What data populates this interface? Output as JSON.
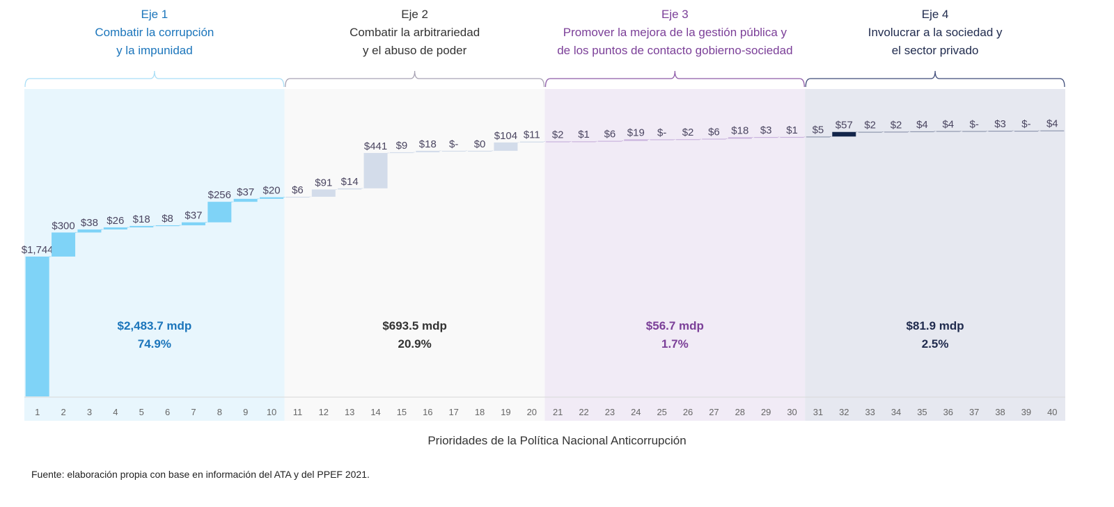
{
  "chart_data": {
    "type": "waterfall",
    "xlabel": "Prioridades de la Política Nacional Anticorrupción",
    "source": "Fuente: elaboración propia con base en información del ATA y del PPEF 2021.",
    "categories": [
      "1",
      "2",
      "3",
      "4",
      "5",
      "6",
      "7",
      "8",
      "9",
      "10",
      "11",
      "12",
      "13",
      "14",
      "15",
      "16",
      "17",
      "18",
      "19",
      "20",
      "21",
      "22",
      "23",
      "24",
      "25",
      "26",
      "27",
      "28",
      "29",
      "30",
      "31",
      "32",
      "33",
      "34",
      "35",
      "36",
      "37",
      "38",
      "39",
      "40"
    ],
    "values": [
      1744,
      300,
      38,
      26,
      18,
      8,
      37,
      256,
      37,
      20,
      6,
      91,
      14,
      441,
      9,
      18,
      0,
      0,
      104,
      11,
      2,
      1,
      6,
      19,
      0,
      2,
      6,
      18,
      3,
      1,
      5,
      57,
      2,
      2,
      4,
      4,
      0,
      3,
      0,
      4
    ],
    "labels": [
      "$1,744",
      "$300",
      "$38",
      "$26",
      "$18",
      "$8",
      "$37",
      "$256",
      "$37",
      "$20",
      "$6",
      "$91",
      "$14",
      "$441",
      "$9",
      "$18",
      "$-",
      "$0",
      "$104",
      "$11",
      "$2",
      "$1",
      "$6",
      "$19",
      "$-",
      "$2",
      "$6",
      "$18",
      "$3",
      "$1",
      "$5",
      "$57",
      "$2",
      "$2",
      "$4",
      "$4",
      "$-",
      "$3",
      "$-",
      "$4"
    ],
    "groups": [
      {
        "eje": "Eje 1",
        "line1": "Combatir la corrupción",
        "line2": "y la impunidad",
        "total": "$2,483.7 mdp",
        "pct": "74.9%",
        "from": 1,
        "to": 10,
        "title_color": "#1b75bb",
        "bar_color": "#7fd3f7",
        "bg_color": "#e8f6fd",
        "bracket_color": "#a9def6"
      },
      {
        "eje": "Eje 2",
        "line1": "Combatir la arbitrariedad",
        "line2": "y el abuso de poder",
        "total": "$693.5 mdp",
        "pct": "20.9%",
        "from": 11,
        "to": 20,
        "title_color": "#333333",
        "bar_color": "#d3dcea",
        "bg_color": "#f9f9f9",
        "bracket_color": "#a7a2b3"
      },
      {
        "eje": "Eje 3",
        "line1": "Promover la mejora de la gestión pública y",
        "line2": "de los puntos de contacto gobierno-sociedad",
        "total": "$56.7 mdp",
        "pct": "1.7%",
        "from": 21,
        "to": 30,
        "title_color": "#7b3f98",
        "bar_color": "#c9b3dd",
        "bg_color": "#f1ebf6",
        "bracket_color": "#8d5aa8"
      },
      {
        "eje": "Eje 4",
        "line1": "Involucrar a la sociedad y",
        "line2": "el sector privado",
        "total": "$81.9 mdp",
        "pct": "2.5%",
        "from": 31,
        "to": 40,
        "title_color": "#1f2a4d",
        "bar_color": "#8e96ad",
        "bg_color": "#e6e8f0",
        "bracket_color": "#3d4a78",
        "highlight_bar": "32",
        "highlight_color": "#13254a"
      }
    ],
    "grid": false,
    "legend": "none"
  }
}
